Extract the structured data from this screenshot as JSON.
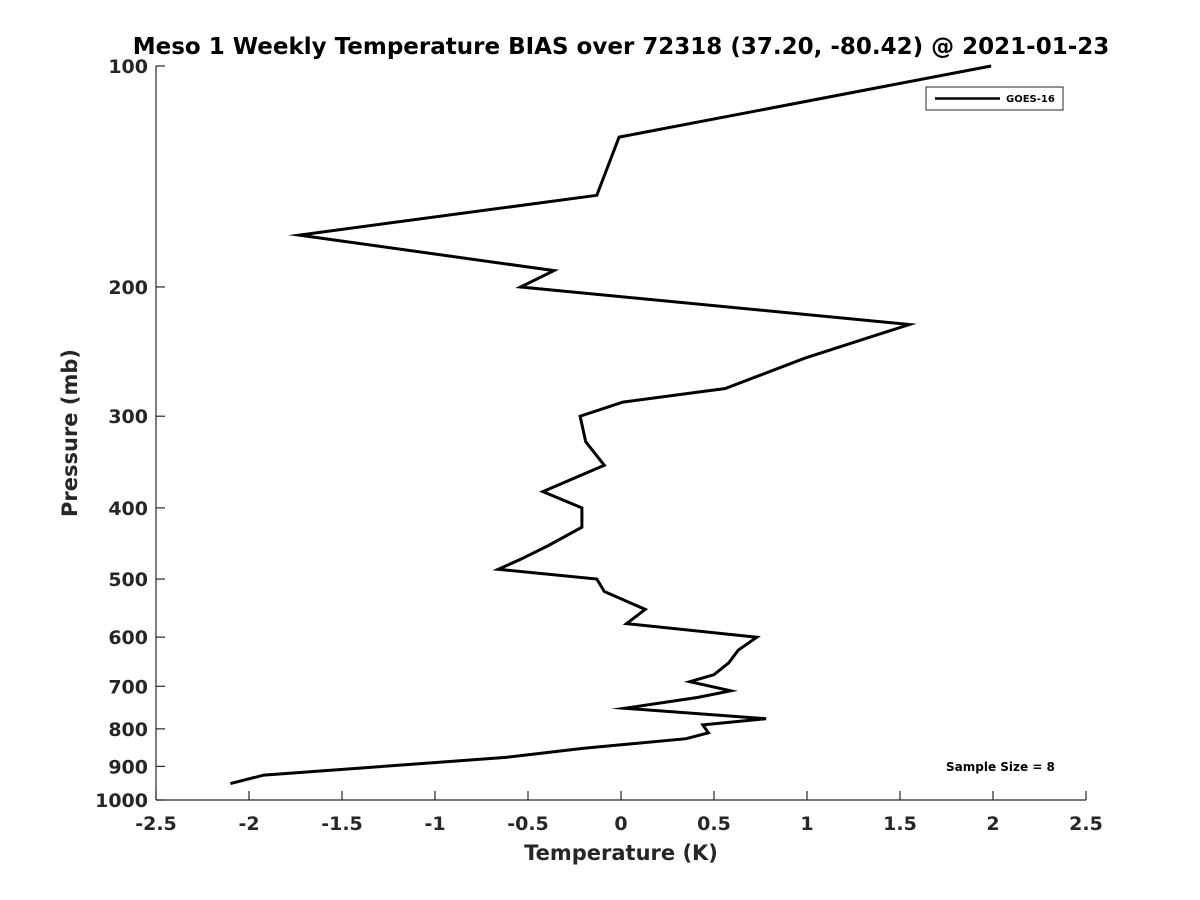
{
  "chart_data": {
    "type": "line",
    "title": "Meso 1 Weekly Temperature BIAS over 72318 (37.20, -80.42) @ 2021-01-23",
    "xlabel": "Temperature (K)",
    "ylabel": "Pressure (mb)",
    "xlim": [
      -2.5,
      2.5
    ],
    "ylim": [
      100,
      1000
    ],
    "y_scale": "log",
    "y_reversed": true,
    "x_ticks": [
      -2.5,
      -2,
      -1.5,
      -1,
      -0.5,
      0,
      0.5,
      1,
      1.5,
      2,
      2.5
    ],
    "x_tick_labels": [
      "-2.5",
      "-2",
      "-1.5",
      "-1",
      "-0.5",
      "0",
      "0.5",
      "1",
      "1.5",
      "2",
      "2.5"
    ],
    "y_ticks": [
      100,
      200,
      300,
      400,
      500,
      600,
      700,
      800,
      900,
      1000
    ],
    "y_tick_labels": [
      "100",
      "200",
      "300",
      "400",
      "500",
      "600",
      "700",
      "800",
      "900",
      "1000"
    ],
    "grid": false,
    "legend_position": "top-right",
    "series": [
      {
        "name": "GOES-16",
        "color": "#000000",
        "points": [
          {
            "x": 1.99,
            "y": 100
          },
          {
            "x": -0.01,
            "y": 125
          },
          {
            "x": -0.13,
            "y": 150
          },
          {
            "x": -1.73,
            "y": 170
          },
          {
            "x": -0.36,
            "y": 190
          },
          {
            "x": -0.54,
            "y": 200
          },
          {
            "x": 1.55,
            "y": 225
          },
          {
            "x": 0.99,
            "y": 250
          },
          {
            "x": 0.56,
            "y": 275
          },
          {
            "x": 0.01,
            "y": 287
          },
          {
            "x": -0.22,
            "y": 300
          },
          {
            "x": -0.19,
            "y": 325
          },
          {
            "x": -0.09,
            "y": 350
          },
          {
            "x": -0.42,
            "y": 380
          },
          {
            "x": -0.21,
            "y": 400
          },
          {
            "x": -0.21,
            "y": 425
          },
          {
            "x": -0.39,
            "y": 450
          },
          {
            "x": -0.54,
            "y": 470
          },
          {
            "x": -0.66,
            "y": 485
          },
          {
            "x": -0.13,
            "y": 500
          },
          {
            "x": -0.09,
            "y": 520
          },
          {
            "x": 0.13,
            "y": 550
          },
          {
            "x": 0.03,
            "y": 575
          },
          {
            "x": 0.73,
            "y": 600
          },
          {
            "x": 0.63,
            "y": 625
          },
          {
            "x": 0.58,
            "y": 650
          },
          {
            "x": 0.5,
            "y": 675
          },
          {
            "x": 0.37,
            "y": 690
          },
          {
            "x": 0.59,
            "y": 710
          },
          {
            "x": 0.41,
            "y": 725
          },
          {
            "x": 0.02,
            "y": 750
          },
          {
            "x": 0.78,
            "y": 775
          },
          {
            "x": 0.44,
            "y": 790
          },
          {
            "x": 0.47,
            "y": 810
          },
          {
            "x": 0.35,
            "y": 825
          },
          {
            "x": -0.2,
            "y": 850
          },
          {
            "x": -0.62,
            "y": 875
          },
          {
            "x": -1.92,
            "y": 925
          },
          {
            "x": -2.1,
            "y": 950
          }
        ]
      }
    ],
    "annotations": [
      {
        "text": "Sample Size = 8",
        "position": "bottom-right"
      }
    ]
  }
}
